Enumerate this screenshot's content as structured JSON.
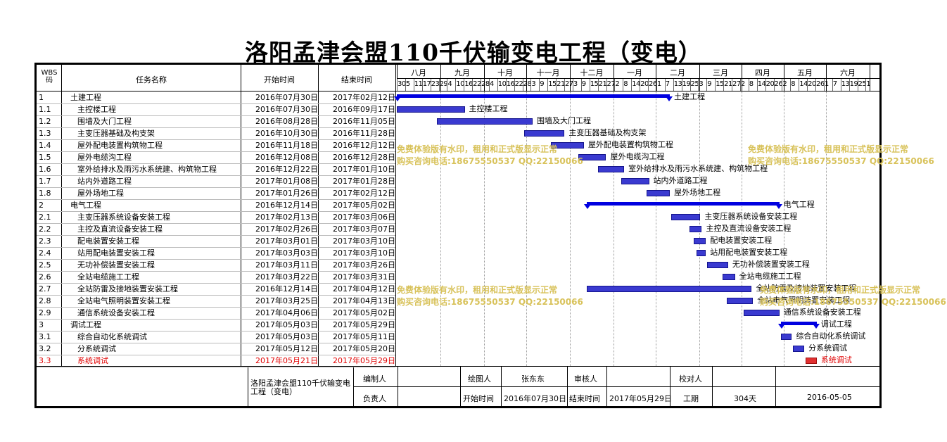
{
  "title": "洛阳孟津会盟110千伏输变电工程（变电）",
  "headers": {
    "wbs_line1": "WBS",
    "wbs_line2": "码",
    "name": "任务名称",
    "start": "开始时间",
    "end": "结束时间"
  },
  "months": [
    "八月",
    "九月",
    "十月",
    "十一月",
    "十二月",
    "一月",
    "二月",
    "三月",
    "四月",
    "五月",
    "六月"
  ],
  "ticks": "30 5 11 17 23 29 4 10 16 22 28 4 10 16 22 28 3 9 15 21 27 3 9 15 21 27 2 8 14 20 26 1 7 13 19 25 3 9 15 21 27 2 8 14 20 26 2 8 14 20 26 1 7 13 19 25 1",
  "tasks": [
    {
      "wbs": "1",
      "name": "土建工程",
      "start": "2016年07月30日",
      "end": "2017年02月12日",
      "type": "summary",
      "s": 0,
      "e": 197,
      "label": "土建工程"
    },
    {
      "wbs": "1.1",
      "name": "主控楼工程",
      "start": "2016年07月30日",
      "end": "2016年09月17日",
      "type": "task",
      "s": 0,
      "e": 49,
      "label": "主控楼工程"
    },
    {
      "wbs": "1.2",
      "name": "围墙及大门工程",
      "start": "2016年08月28日",
      "end": "2016年11月05日",
      "type": "task",
      "s": 29,
      "e": 98,
      "label": "围墙及大门工程"
    },
    {
      "wbs": "1.3",
      "name": "主变压器基础及构支架",
      "start": "2016年10月30日",
      "end": "2016年11月28日",
      "type": "task",
      "s": 92,
      "e": 121,
      "label": "主变压器基础及构支架"
    },
    {
      "wbs": "1.4",
      "name": "屋外配电装置构筑物工程",
      "start": "2016年11月18日",
      "end": "2016年12月12日",
      "type": "task",
      "s": 111,
      "e": 135,
      "label": "屋外配电装置构筑物工程"
    },
    {
      "wbs": "1.5",
      "name": "屋外电缆沟工程",
      "start": "2016年12月08日",
      "end": "2016年12月28日",
      "type": "task",
      "s": 131,
      "e": 151,
      "label": "屋外电缆沟工程"
    },
    {
      "wbs": "1.6",
      "name": "室外给排水及雨污水系统建、构筑物工程",
      "start": "2016年12月22日",
      "end": "2017年01月10日",
      "type": "task",
      "s": 145,
      "e": 164,
      "label": "室外给排水及雨污水系统建、构筑物工程"
    },
    {
      "wbs": "1.7",
      "name": "站内外道路工程",
      "start": "2017年01月08日",
      "end": "2017年01月28日",
      "type": "task",
      "s": 162,
      "e": 182,
      "label": "站内外道路工程"
    },
    {
      "wbs": "1.8",
      "name": "屋外场地工程",
      "start": "2017年01月26日",
      "end": "2017年02月12日",
      "type": "task",
      "s": 180,
      "e": 197,
      "label": "屋外场地工程"
    },
    {
      "wbs": "2",
      "name": "电气工程",
      "start": "2016年12月14日",
      "end": "2017年05月02日",
      "type": "summary",
      "s": 137,
      "e": 276,
      "label": "电气工程"
    },
    {
      "wbs": "2.1",
      "name": "主变压器系统设备安装工程",
      "start": "2017年02月13日",
      "end": "2017年03月06日",
      "type": "task",
      "s": 198,
      "e": 219,
      "label": "主变压器系统设备安装工程"
    },
    {
      "wbs": "2.2",
      "name": "主控及直流设备安装工程",
      "start": "2017年02月26日",
      "end": "2017年03月07日",
      "type": "task",
      "s": 211,
      "e": 220,
      "label": "主控及直流设备安装工程"
    },
    {
      "wbs": "2.3",
      "name": "配电装置安装工程",
      "start": "2017年03月01日",
      "end": "2017年03月10日",
      "type": "task",
      "s": 214,
      "e": 223,
      "label": "配电装置安装工程"
    },
    {
      "wbs": "2.4",
      "name": "站用配电装置安装工程",
      "start": "2017年03月03日",
      "end": "2017年03月10日",
      "type": "task",
      "s": 216,
      "e": 223,
      "label": "站用配电装置安装工程"
    },
    {
      "wbs": "2.5",
      "name": "无功补偿装置安装工程",
      "start": "2017年03月11日",
      "end": "2017年03月26日",
      "type": "task",
      "s": 224,
      "e": 239,
      "label": "无功补偿装置安装工程"
    },
    {
      "wbs": "2.6",
      "name": "全站电缆施工工程",
      "start": "2017年03月22日",
      "end": "2017年03月31日",
      "type": "task",
      "s": 235,
      "e": 244,
      "label": "全站电缆施工工程"
    },
    {
      "wbs": "2.7",
      "name": "全站防雷及接地装置安装工程",
      "start": "2016年12月14日",
      "end": "2017年04月12日",
      "type": "task",
      "s": 137,
      "e": 256,
      "label": "全站防雷及接地装置安装工程"
    },
    {
      "wbs": "2.8",
      "name": "全站电气照明装置安装工程",
      "start": "2017年03月25日",
      "end": "2017年04月13日",
      "type": "task",
      "s": 238,
      "e": 257,
      "label": "全站电气照明装置安装工程"
    },
    {
      "wbs": "2.9",
      "name": "通信系统设备安装工程",
      "start": "2017年04月06日",
      "end": "2017年05月02日",
      "type": "task",
      "s": 250,
      "e": 276,
      "label": "通信系统设备安装工程"
    },
    {
      "wbs": "3",
      "name": "调试工程",
      "start": "2017年05月03日",
      "end": "2017年05月29日",
      "type": "summary",
      "s": 277,
      "e": 303,
      "label": "调试工程"
    },
    {
      "wbs": "3.1",
      "name": "综合自动化系统调试",
      "start": "2017年05月03日",
      "end": "2017年05月11日",
      "type": "task",
      "s": 277,
      "e": 285,
      "label": "综合自动化系统调试"
    },
    {
      "wbs": "3.2",
      "name": "分系统调试",
      "start": "2017年05月12日",
      "end": "2017年05月20日",
      "type": "task",
      "s": 286,
      "e": 294,
      "label": "分系统调试"
    },
    {
      "wbs": "3.3",
      "name": "系统调试",
      "start": "2017年05月21日",
      "end": "2017年05月29日",
      "type": "critical",
      "s": 295,
      "e": 303,
      "label": "系统调试"
    }
  ],
  "watermark": {
    "line1": "免费体验版有水印，租用和正式版显示正常",
    "line2": "购买咨询电话:18675550537 QQ:22150066"
  },
  "footer": {
    "project": "洛阳孟津会盟110千伏输变电工程（变电）",
    "compiler_label": "编制人",
    "drawer_label": "绘图人",
    "drawer": "张东东",
    "reviewer_label": "审核人",
    "proofreader_label": "校对人",
    "owner_label": "负责人",
    "start_label": "开始时间",
    "start": "2016年07月30日",
    "end_label": "结束时间",
    "end": "2017年05月29日",
    "duration_label": "工期",
    "duration": "304天",
    "date": "2016-05-05"
  },
  "colors": {
    "bar": "#3a3ad0",
    "summary": "#0000e0",
    "critical": "#e03030",
    "critical_text": "#e00000",
    "watermark": "#d8c25a"
  }
}
